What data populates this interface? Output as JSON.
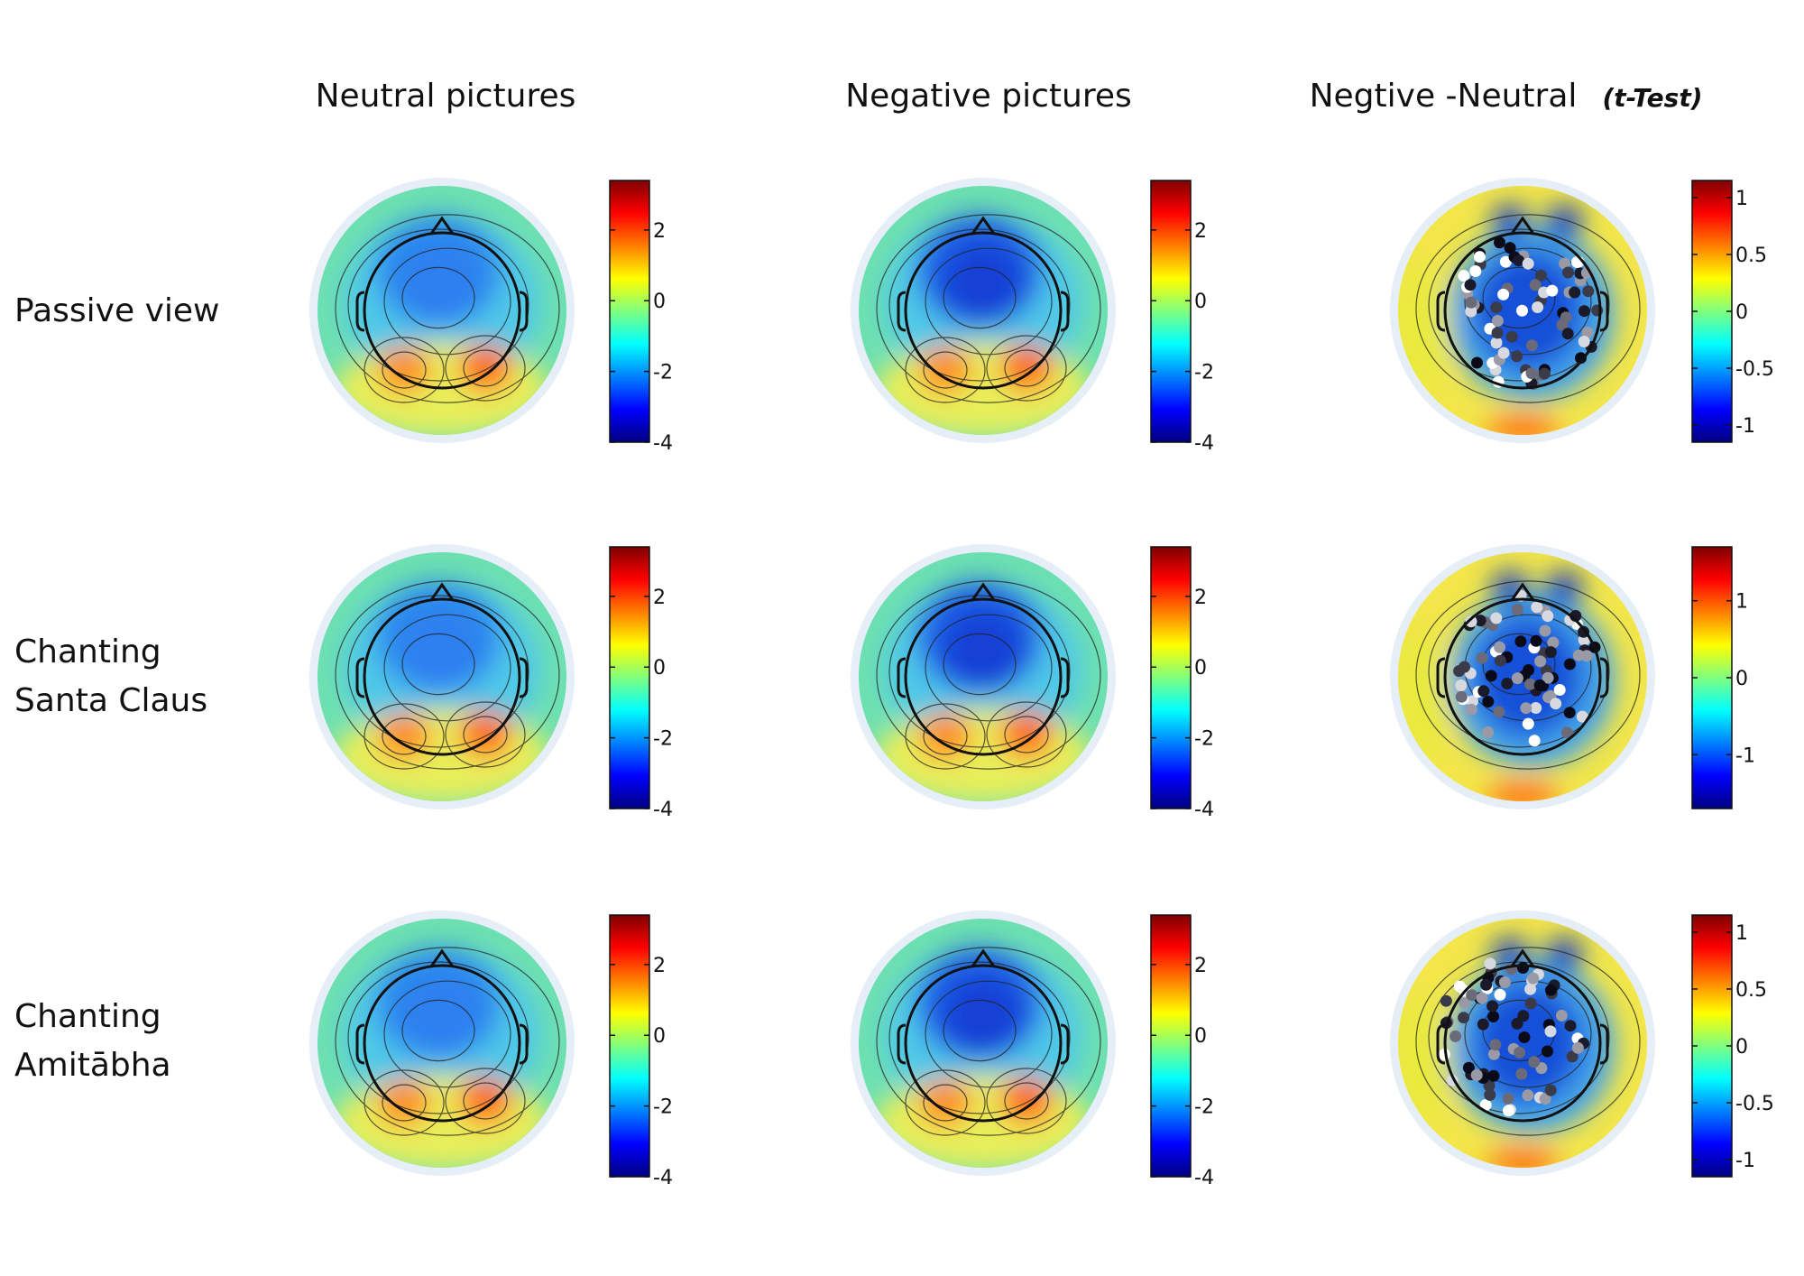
{
  "columns": [
    {
      "title": "Neutral pictures"
    },
    {
      "title": "Negative pictures"
    },
    {
      "title": "Negtive -Neutral",
      "suffix": "(t-Test)"
    }
  ],
  "rows": [
    {
      "label_lines": [
        "Passive view"
      ]
    },
    {
      "label_lines": [
        "Chanting",
        "Santa Claus"
      ]
    },
    {
      "label_lines": [
        "Chanting",
        "Amitābha"
      ]
    }
  ],
  "colorbars": [
    [
      {
        "ticks": [
          "2",
          "0",
          "-2",
          "-4"
        ],
        "tick_values": [
          2,
          0,
          -2,
          -4
        ],
        "range": [
          -4,
          3.4
        ]
      },
      {
        "ticks": [
          "2",
          "0",
          "-2",
          "-4"
        ],
        "tick_values": [
          2,
          0,
          -2,
          -4
        ],
        "range": [
          -4,
          3.4
        ]
      },
      {
        "ticks": [
          "1",
          "0.5",
          "0",
          "-0.5",
          "-1"
        ],
        "tick_values": [
          1,
          0.5,
          0,
          -0.5,
          -1
        ],
        "range": [
          -1.15,
          1.15
        ]
      }
    ],
    [
      {
        "ticks": [
          "2",
          "0",
          "-2",
          "-4"
        ],
        "tick_values": [
          2,
          0,
          -2,
          -4
        ],
        "range": [
          -4,
          3.4
        ]
      },
      {
        "ticks": [
          "2",
          "0",
          "-2",
          "-4"
        ],
        "tick_values": [
          2,
          0,
          -2,
          -4
        ],
        "range": [
          -4,
          3.4
        ]
      },
      {
        "ticks": [
          "1",
          "0",
          "-1"
        ],
        "tick_values": [
          1,
          0,
          -1
        ],
        "range": [
          -1.7,
          1.7
        ]
      }
    ],
    [
      {
        "ticks": [
          "2",
          "0",
          "-2",
          "-4"
        ],
        "tick_values": [
          2,
          0,
          -2,
          -4
        ],
        "range": [
          -4,
          3.4
        ]
      },
      {
        "ticks": [
          "2",
          "0",
          "-2",
          "-4"
        ],
        "tick_values": [
          2,
          0,
          -2,
          -4
        ],
        "range": [
          -4,
          3.4
        ]
      },
      {
        "ticks": [
          "1",
          "0.5",
          "0",
          "-0.5",
          "-1"
        ],
        "tick_values": [
          1,
          0.5,
          0,
          -0.5,
          -1
        ],
        "range": [
          -1.15,
          1.15
        ]
      }
    ]
  ],
  "colors": {
    "jet": [
      "#00007f",
      "#0000ff",
      "#007fff",
      "#00ffff",
      "#7fff7f",
      "#ffff00",
      "#ff7f00",
      "#ff0000",
      "#7f0000"
    ],
    "head_outline": "#111111",
    "map_halo": "#e6eef7"
  }
}
